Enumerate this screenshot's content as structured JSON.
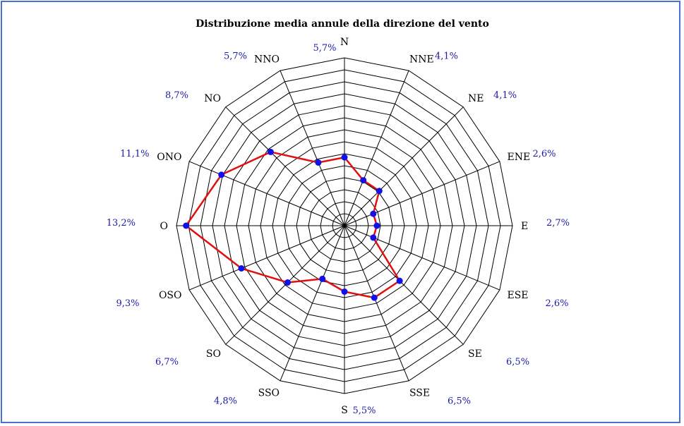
{
  "chart_data": {
    "type": "radar",
    "title": "Distribuzione media annule della direzione del vento",
    "categories": [
      "N",
      "NNE",
      "NE",
      "ENE",
      "E",
      "ESE",
      "SE",
      "SSE",
      "S",
      "SSO",
      "SO",
      "OSO",
      "O",
      "ONO",
      "NO",
      "NNO"
    ],
    "values_label": [
      "5,7%",
      "4,1%",
      "4,1%",
      "2,6%",
      "2,7%",
      "2,6%",
      "6,5%",
      "6,5%",
      "5,5%",
      "4,8%",
      "6,7%",
      "9,3%",
      "13,2%",
      "11,1%",
      "8,7%",
      "5,7%"
    ],
    "values": [
      5.7,
      4.1,
      4.1,
      2.6,
      2.7,
      2.6,
      6.5,
      6.5,
      5.5,
      4.8,
      6.7,
      9.3,
      13.2,
      11.1,
      8.7,
      5.7
    ],
    "rlim": [
      0,
      14
    ],
    "ring_step": 1,
    "grid": true,
    "line_color": "#e01010",
    "marker_color": "#1010e8",
    "label_color": "#1a1aa8",
    "frame_color": "#4a6fd4"
  }
}
